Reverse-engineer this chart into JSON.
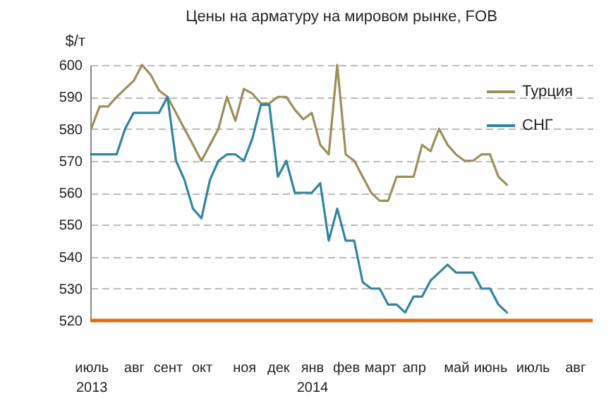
{
  "chart_data": {
    "type": "line",
    "title": "Цены на арматуру на мировом рынке, FOB",
    "ylabel": "$/т",
    "categories": [
      "июль\n2013",
      null,
      null,
      null,
      null,
      "авг",
      null,
      null,
      null,
      "сент",
      null,
      null,
      null,
      "окт",
      null,
      null,
      null,
      null,
      "ноя",
      null,
      null,
      null,
      "дек",
      null,
      null,
      null,
      "янв\n2014",
      null,
      null,
      null,
      "фев",
      null,
      null,
      null,
      "март",
      null,
      null,
      null,
      "апр",
      null,
      null,
      null,
      null,
      "май",
      null,
      null,
      null,
      "июнь",
      null,
      null,
      null,
      null,
      "июль",
      null,
      null,
      null,
      null,
      "авг",
      null,
      null
    ],
    "series": [
      {
        "name": "Турция",
        "color": "#9b8f5a",
        "values": [
          580,
          587,
          587,
          590,
          592.5,
          595,
          600,
          597,
          592,
          590,
          585,
          580,
          575,
          570,
          575,
          580,
          590,
          582.5,
          592.5,
          591,
          588,
          588,
          590,
          590,
          586,
          583,
          585,
          575,
          572,
          600,
          572,
          570,
          565,
          560,
          557.5,
          557.5,
          565,
          565,
          565,
          575,
          573,
          580,
          575,
          572,
          570,
          570,
          572,
          572,
          565,
          562.5,
          null,
          null,
          null,
          null,
          null,
          null,
          null,
          null,
          null,
          null
        ]
      },
      {
        "name": "СНГ",
        "color": "#31859c",
        "values": [
          572,
          572,
          572,
          572,
          580,
          585,
          585,
          585,
          585,
          590,
          570,
          564,
          555,
          552,
          564,
          570,
          572,
          572,
          570,
          577,
          587.5,
          587.5,
          565,
          570,
          560,
          560,
          560,
          563,
          545,
          555,
          545,
          545,
          532,
          530,
          530,
          525,
          525,
          522.5,
          527.5,
          527.5,
          532.5,
          535,
          537.5,
          535,
          535,
          535,
          530,
          530,
          525,
          522.5,
          null,
          null,
          null,
          null,
          null,
          null,
          null,
          null,
          null,
          null
        ]
      }
    ],
    "ylim": [
      520,
      600
    ],
    "yticks": [
      520,
      530,
      540,
      550,
      560,
      570,
      580,
      590,
      600
    ],
    "ref_lines": [
      {
        "axis": "y",
        "value": 520,
        "color": "#e46c0a"
      }
    ],
    "grid": "y",
    "legend": "top right",
    "line_style": "solid"
  }
}
